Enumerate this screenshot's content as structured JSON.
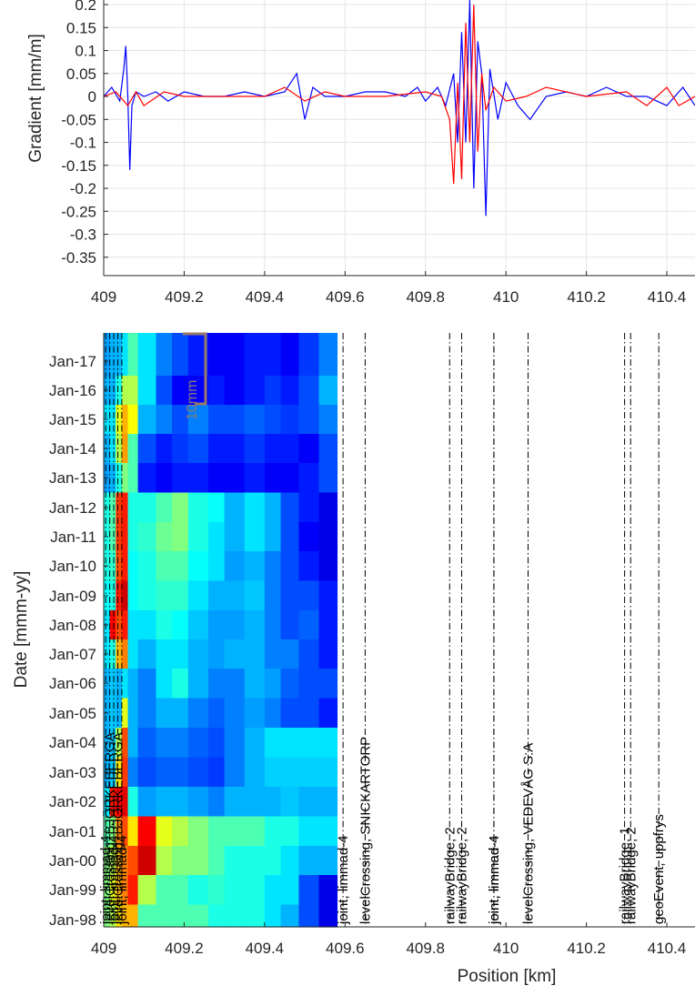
{
  "chart_data": [
    {
      "type": "line",
      "title": "",
      "ylabel": "Gradient [mm/m]",
      "xlabel": "",
      "xlim": [
        409,
        410.47
      ],
      "ylim": [
        -0.39,
        0.21
      ],
      "grid": true,
      "xticks": [
        "409",
        "409.2",
        "409.4",
        "409.6",
        "409.8",
        "410",
        "410.2",
        "410.4"
      ],
      "xtick_values": [
        409,
        409.2,
        409.4,
        409.6,
        409.8,
        410,
        410.2,
        410.4
      ],
      "yticks": [
        "0.2",
        "0.15",
        "0.1",
        "0.05",
        "0",
        "-0.05",
        "-0.1",
        "-0.15",
        "-0.2",
        "-0.25",
        "-0.3",
        "-0.35"
      ],
      "ytick_values": [
        0.2,
        0.15,
        0.1,
        0.05,
        0,
        -0.05,
        -0.1,
        -0.15,
        -0.2,
        -0.25,
        -0.3,
        -0.35
      ],
      "series": [
        {
          "color": "#0000ff",
          "x": [
            409.0,
            409.02,
            409.04,
            409.05,
            409.055,
            409.06,
            409.065,
            409.07,
            409.08,
            409.1,
            409.13,
            409.16,
            409.2,
            409.25,
            409.3,
            409.35,
            409.4,
            409.45,
            409.48,
            409.5,
            409.52,
            409.55,
            409.6,
            409.65,
            409.7,
            409.75,
            409.78,
            409.8,
            409.83,
            409.85,
            409.87,
            409.88,
            409.89,
            409.9,
            409.91,
            409.92,
            409.93,
            409.94,
            409.95,
            409.96,
            409.98,
            410.0,
            410.03,
            410.06,
            410.1,
            410.15,
            410.2,
            410.25,
            410.3,
            410.35,
            410.4,
            410.44,
            410.47
          ],
          "y": [
            0.0,
            0.02,
            -0.01,
            0.06,
            0.11,
            0.0,
            -0.16,
            -0.02,
            0.01,
            0.0,
            0.01,
            -0.01,
            0.01,
            0.0,
            0.0,
            0.01,
            0.0,
            0.01,
            0.05,
            -0.05,
            0.02,
            0.0,
            0.0,
            0.01,
            0.01,
            0.0,
            0.02,
            -0.01,
            0.02,
            -0.02,
            0.05,
            -0.1,
            0.14,
            -0.1,
            0.21,
            -0.2,
            0.12,
            0.05,
            -0.26,
            0.06,
            -0.05,
            0.03,
            -0.02,
            -0.05,
            0.0,
            0.01,
            0.0,
            0.02,
            0.0,
            0.0,
            -0.02,
            0.02,
            -0.02
          ]
        },
        {
          "color": "#ff0000",
          "x": [
            409.0,
            409.03,
            409.06,
            409.08,
            409.1,
            409.15,
            409.2,
            409.3,
            409.4,
            409.45,
            409.5,
            409.55,
            409.6,
            409.7,
            409.8,
            409.84,
            409.86,
            409.87,
            409.88,
            409.89,
            409.9,
            409.91,
            409.92,
            409.93,
            409.94,
            409.95,
            409.97,
            410.0,
            410.05,
            410.1,
            410.2,
            410.3,
            410.35,
            410.4,
            410.43,
            410.47
          ],
          "y": [
            0.0,
            0.01,
            -0.02,
            0.01,
            -0.02,
            0.01,
            0.0,
            0.0,
            0.0,
            0.02,
            -0.01,
            0.01,
            0.0,
            0.0,
            0.01,
            0.0,
            -0.05,
            -0.19,
            0.03,
            -0.18,
            0.16,
            -0.1,
            0.2,
            -0.12,
            0.05,
            -0.03,
            0.02,
            -0.01,
            0.0,
            0.02,
            0.0,
            0.01,
            -0.02,
            0.02,
            -0.02,
            0.0
          ]
        }
      ]
    },
    {
      "type": "heatmap",
      "title": "",
      "xlabel": "Position [km]",
      "ylabel": "Date [mmm-yy]",
      "xlim": [
        409,
        410.47
      ],
      "grid": false,
      "xticks": [
        "409",
        "409.2",
        "409.4",
        "409.6",
        "409.8",
        "410",
        "410.2",
        "410.4"
      ],
      "xtick_values": [
        409,
        409.2,
        409.4,
        409.6,
        409.8,
        410,
        410.2,
        410.4
      ],
      "yticks": [
        "Jan-17",
        "Jan-16",
        "Jan-15",
        "Jan-14",
        "Jan-13",
        "Jan-12",
        "Jan-11",
        "Jan-10",
        "Jan-09",
        "Jan-08",
        "Jan-07",
        "Jan-06",
        "Jan-05",
        "Jan-04",
        "Jan-03",
        "Jan-02",
        "Jan-01",
        "Jan-00",
        "Jan-99",
        "Jan-98"
      ],
      "x_edges": [
        409.0,
        409.015,
        409.03,
        409.045,
        409.06,
        409.085,
        409.13,
        409.17,
        409.21,
        409.26,
        409.3,
        409.35,
        409.4,
        409.44,
        409.485,
        409.535,
        409.58
      ],
      "row_dates": [
        "Jan-17",
        "Jan-16",
        "Jan-15",
        "Jan-14",
        "Jan-13",
        "Jan-12",
        "Jan-11",
        "Jan-10",
        "Jan-09",
        "Jan-08",
        "Jan-07",
        "Jan-06",
        "Jan-05",
        "Jan-04",
        "Jan-03",
        "Jan-02",
        "Jan-01",
        "Jan-00",
        "Jan-99",
        "Jan-98"
      ],
      "values": [
        [
          0.28,
          0.3,
          0.3,
          0.35,
          0.45,
          0.35,
          0.25,
          0.2,
          0.15,
          0.12,
          0.12,
          0.15,
          0.15,
          0.12,
          0.18,
          0.25
        ],
        [
          0.3,
          0.3,
          0.4,
          0.55,
          0.55,
          0.35,
          0.2,
          0.12,
          0.12,
          0.15,
          0.12,
          0.15,
          0.18,
          0.15,
          0.2,
          0.3
        ],
        [
          0.35,
          0.35,
          0.6,
          0.7,
          0.62,
          0.3,
          0.25,
          0.2,
          0.25,
          0.2,
          0.2,
          0.22,
          0.2,
          0.18,
          0.2,
          0.25
        ],
        [
          0.3,
          0.35,
          0.55,
          0.72,
          0.45,
          0.2,
          0.15,
          0.18,
          0.2,
          0.15,
          0.15,
          0.18,
          0.15,
          0.15,
          0.12,
          0.2
        ],
        [
          0.28,
          0.3,
          0.4,
          0.5,
          0.45,
          0.15,
          0.12,
          0.15,
          0.15,
          0.12,
          0.12,
          0.15,
          0.12,
          0.12,
          0.15,
          0.2
        ],
        [
          0.4,
          0.45,
          0.82,
          0.85,
          0.4,
          0.4,
          0.45,
          0.5,
          0.4,
          0.38,
          0.3,
          0.35,
          0.3,
          0.2,
          0.15,
          0.1
        ],
        [
          0.4,
          0.45,
          0.82,
          0.85,
          0.4,
          0.42,
          0.48,
          0.5,
          0.4,
          0.35,
          0.3,
          0.35,
          0.3,
          0.2,
          0.12,
          0.1
        ],
        [
          0.4,
          0.42,
          0.8,
          0.85,
          0.38,
          0.4,
          0.45,
          0.45,
          0.38,
          0.35,
          0.28,
          0.3,
          0.25,
          0.2,
          0.15,
          0.1
        ],
        [
          0.38,
          0.4,
          0.85,
          0.92,
          0.38,
          0.4,
          0.42,
          0.42,
          0.35,
          0.3,
          0.3,
          0.32,
          0.25,
          0.2,
          0.2,
          0.15
        ],
        [
          0.35,
          0.88,
          0.8,
          0.85,
          0.35,
          0.35,
          0.4,
          0.38,
          0.32,
          0.28,
          0.28,
          0.3,
          0.25,
          0.2,
          0.22,
          0.15
        ],
        [
          0.35,
          0.4,
          0.7,
          0.75,
          0.35,
          0.3,
          0.35,
          0.35,
          0.3,
          0.28,
          0.3,
          0.3,
          0.25,
          0.25,
          0.2,
          0.15
        ],
        [
          0.3,
          0.32,
          0.3,
          0.35,
          0.3,
          0.25,
          0.35,
          0.4,
          0.3,
          0.25,
          0.25,
          0.3,
          0.28,
          0.22,
          0.2,
          0.2
        ],
        [
          0.3,
          0.32,
          0.3,
          0.6,
          0.3,
          0.25,
          0.3,
          0.3,
          0.25,
          0.22,
          0.25,
          0.28,
          0.25,
          0.2,
          0.2,
          0.15
        ],
        [
          0.3,
          0.32,
          0.55,
          0.8,
          0.3,
          0.22,
          0.25,
          0.25,
          0.22,
          0.2,
          0.25,
          0.3,
          0.35,
          0.35,
          0.35,
          0.35
        ],
        [
          0.3,
          0.32,
          0.65,
          0.82,
          0.25,
          0.2,
          0.22,
          0.22,
          0.2,
          0.18,
          0.25,
          0.3,
          0.33,
          0.33,
          0.33,
          0.33
        ],
        [
          0.35,
          0.85,
          0.88,
          0.9,
          0.4,
          0.28,
          0.3,
          0.3,
          0.28,
          0.25,
          0.3,
          0.3,
          0.3,
          0.32,
          0.3,
          0.3
        ],
        [
          0.45,
          0.5,
          0.75,
          0.8,
          0.65,
          0.88,
          0.6,
          0.55,
          0.5,
          0.45,
          0.45,
          0.45,
          0.4,
          0.4,
          0.35,
          0.35
        ],
        [
          0.5,
          0.55,
          0.7,
          0.75,
          0.8,
          0.92,
          0.55,
          0.5,
          0.5,
          0.45,
          0.4,
          0.4,
          0.4,
          0.35,
          0.3,
          0.3
        ],
        [
          0.5,
          0.6,
          0.7,
          0.75,
          0.85,
          0.55,
          0.45,
          0.45,
          0.4,
          0.42,
          0.4,
          0.4,
          0.35,
          0.35,
          0.2,
          0.1
        ],
        [
          0.5,
          0.55,
          0.65,
          0.7,
          0.7,
          0.45,
          0.45,
          0.45,
          0.45,
          0.4,
          0.4,
          0.4,
          0.35,
          0.3,
          0.2,
          0.1
        ]
      ],
      "annotations": [
        {
          "x": 409.005,
          "label": "joint, limmad-4"
        },
        {
          "x": 409.015,
          "label": "levelCrossing, BJÖRKEBERGA"
        },
        {
          "x": 409.025,
          "label": "joint, limmad-4"
        },
        {
          "x": 409.035,
          "label": "levelCrossing, BJÖRKEBERGA"
        },
        {
          "x": 409.045,
          "label": "joint, limmad-4"
        },
        {
          "x": 409.595,
          "label": "joint, limmad-4"
        },
        {
          "x": 409.65,
          "label": "levelCrossing, SNICKARTORP"
        },
        {
          "x": 409.86,
          "label": "railwayBridge, 2"
        },
        {
          "x": 409.89,
          "label": "railwayBridge, 2"
        },
        {
          "x": 409.97,
          "label": "joint, limmad-4"
        },
        {
          "x": 409.97,
          "label": "joint, limmad-4"
        },
        {
          "x": 410.055,
          "label": "levelCrossing, VEDEVÅG S:A"
        },
        {
          "x": 410.295,
          "label": "railwayBridge, 1"
        },
        {
          "x": 410.31,
          "label": "railwayBridge, 2"
        },
        {
          "x": 410.38,
          "label": "geoEvent, uppfrys"
        }
      ],
      "inset_label": "10mm"
    }
  ]
}
